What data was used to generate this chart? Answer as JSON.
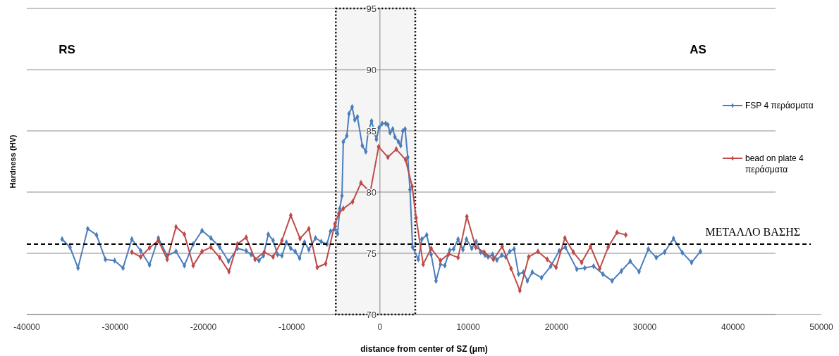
{
  "chart_data": {
    "type": "line",
    "xlabel": "distance from center of SZ (μm)",
    "ylabel": "Hardness (HV)",
    "xlim": [
      -40000,
      50000
    ],
    "xticks": [
      -40000,
      -30000,
      -20000,
      -10000,
      0,
      10000,
      20000,
      30000,
      40000,
      50000
    ],
    "ylim": [
      70,
      95
    ],
    "yticks": [
      70,
      75,
      80,
      85,
      90,
      95
    ],
    "grid": "y",
    "legend": "right",
    "marker": "diamond",
    "line_style": "solid",
    "series": [
      {
        "name": "FSP 4 περάσματα",
        "color": "#4a7ebb",
        "x": [
          -36000,
          -35100,
          -34200,
          -33100,
          -32100,
          -31100,
          -30050,
          -29100,
          -28100,
          -27100,
          -26100,
          -25100,
          -24100,
          -23100,
          -22150,
          -21150,
          -20150,
          -19150,
          -18150,
          -17150,
          -16150,
          -15150,
          -14600,
          -13700,
          -13200,
          -12650,
          -12100,
          -11600,
          -11100,
          -10600,
          -10100,
          -9600,
          -9100,
          -8550,
          -8050,
          -7300,
          -6650,
          -6000,
          -5600,
          -5100,
          -4800,
          -4550,
          -4300,
          -4150,
          -3750,
          -3500,
          -3150,
          -2850,
          -2550,
          -2000,
          -1600,
          -1350,
          -950,
          -550,
          -400,
          -100,
          250,
          650,
          900,
          1150,
          1450,
          1700,
          2100,
          2350,
          2600,
          2850,
          3150,
          3400,
          3700,
          4350,
          4750,
          5300,
          5800,
          6350,
          6850,
          7350,
          7900,
          8350,
          8850,
          9400,
          9800,
          10400,
          10900,
          11400,
          11900,
          12250,
          12750,
          13250,
          13800,
          14250,
          14700,
          15200,
          15700,
          16250,
          16700,
          17250,
          18300,
          19350,
          20300,
          21000,
          22300,
          23200,
          24200,
          25250,
          26300,
          27350,
          28350,
          29350,
          30400,
          31300,
          32250,
          33250,
          34250,
          35300,
          36300
        ],
        "values": [
          76.15,
          75.5,
          73.8,
          77.0,
          76.5,
          74.5,
          74.4,
          73.8,
          76.15,
          75.2,
          74.05,
          76.25,
          74.8,
          75.15,
          74.0,
          75.75,
          76.85,
          76.25,
          75.5,
          74.35,
          75.4,
          75.2,
          74.9,
          74.4,
          74.8,
          76.55,
          76.05,
          74.9,
          74.8,
          75.9,
          75.4,
          75.15,
          74.6,
          75.9,
          75.3,
          76.25,
          75.95,
          75.75,
          76.8,
          77.0,
          76.6,
          78.65,
          79.7,
          84.1,
          84.6,
          86.4,
          86.95,
          85.9,
          86.15,
          83.8,
          83.3,
          84.85,
          85.8,
          84.75,
          84.3,
          85.25,
          85.6,
          85.6,
          85.5,
          84.85,
          85.15,
          84.5,
          84.1,
          83.8,
          85.0,
          85.15,
          82.85,
          80.2,
          75.5,
          74.5,
          76.15,
          76.5,
          74.9,
          72.75,
          74.1,
          74.0,
          75.25,
          75.35,
          76.15,
          75.3,
          76.15,
          75.4,
          75.95,
          75.1,
          74.85,
          74.7,
          74.9,
          74.45,
          74.85,
          74.7,
          75.15,
          75.35,
          73.3,
          73.45,
          72.75,
          73.45,
          73.0,
          73.95,
          75.2,
          75.5,
          73.7,
          73.8,
          73.95,
          73.3,
          72.75,
          73.55,
          74.35,
          73.5,
          75.35,
          74.65,
          75.1,
          76.2,
          75.05,
          74.25,
          75.15
        ]
      },
      {
        "name": "bead on plate 4 περάσματα",
        "color": "#be4b48",
        "x": [
          -28100,
          -27100,
          -26100,
          -25100,
          -24100,
          -23100,
          -22150,
          -21150,
          -20150,
          -19150,
          -18150,
          -17100,
          -16150,
          -15150,
          -14150,
          -13100,
          -12100,
          -11100,
          -10100,
          -9050,
          -8050,
          -7100,
          -6150,
          -5100,
          -4650,
          -4150,
          -3100,
          -2150,
          -1100,
          -150,
          900,
          1850,
          2900,
          3650,
          4100,
          4900,
          5800,
          6850,
          7800,
          8850,
          9850,
          10850,
          11800,
          12850,
          13850,
          14850,
          15850,
          16850,
          17900,
          18950,
          19950,
          20950,
          21900,
          22850,
          23850,
          24900,
          25850,
          26850,
          27850
        ],
        "values": [
          75.1,
          74.7,
          75.45,
          76.05,
          74.5,
          77.15,
          76.55,
          74.0,
          75.15,
          75.5,
          74.65,
          73.5,
          75.75,
          76.3,
          74.5,
          75.1,
          74.7,
          76.05,
          78.1,
          76.2,
          77.0,
          73.85,
          74.15,
          77.4,
          78.25,
          78.65,
          79.2,
          80.75,
          80.0,
          83.7,
          82.85,
          83.5,
          82.65,
          80.45,
          77.9,
          74.1,
          75.4,
          74.4,
          74.95,
          74.65,
          78.0,
          75.5,
          75.1,
          74.5,
          75.55,
          73.75,
          71.95,
          74.7,
          75.15,
          74.5,
          73.85,
          76.25,
          75.1,
          74.25,
          75.55,
          73.75,
          75.5,
          76.7,
          76.5
        ]
      }
    ],
    "ref_lines": [
      {
        "axis": "y",
        "value": 75.75,
        "label": "ΜΕΤΑΛΛΟ ΒΑΣΗΣ",
        "color": "#000000",
        "line_style": "dashed"
      }
    ],
    "bands": [
      {
        "axis": "x",
        "from": -5000,
        "to": 4000,
        "color": "#000000"
      }
    ],
    "annotations": [
      "RS",
      "AS"
    ]
  }
}
